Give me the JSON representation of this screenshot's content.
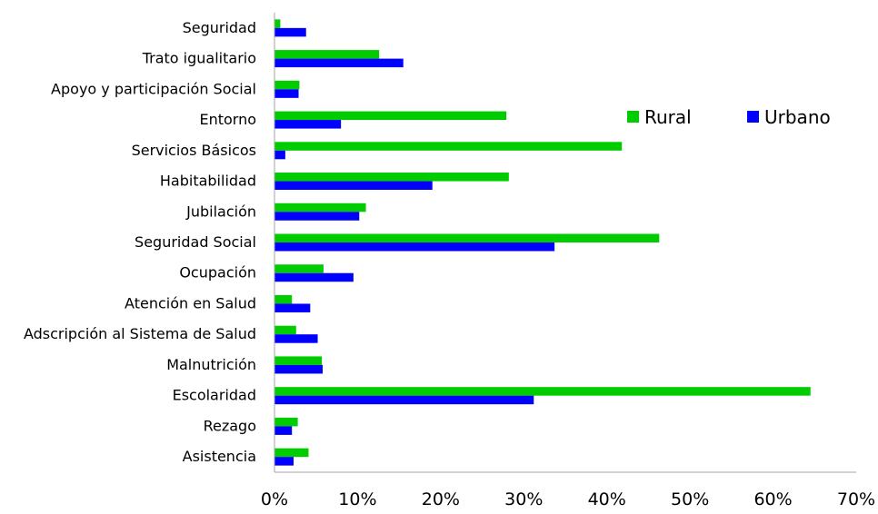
{
  "chart_data": {
    "type": "bar",
    "orientation": "horizontal",
    "categories": [
      "Seguridad",
      "Trato igualitario",
      "Apoyo y participación Social",
      "Entorno",
      "Servicios Básicos",
      "Habitabilidad",
      "Jubilación",
      "Seguridad Social",
      "Ocupación",
      "Atención en Salud",
      "Adscripción al Sistema de Salud",
      "Malnutrición",
      "Escolaridad",
      "Rezago",
      "Asistencia"
    ],
    "series": [
      {
        "name": "Rural",
        "color": "#00cc00",
        "values": [
          0.7,
          12.6,
          3.0,
          27.9,
          41.8,
          28.2,
          11.0,
          46.3,
          5.9,
          2.1,
          2.6,
          5.7,
          64.5,
          2.8,
          4.1
        ]
      },
      {
        "name": "Urbano",
        "color": "#0000ff",
        "values": [
          3.8,
          15.5,
          2.9,
          8.0,
          1.3,
          19.0,
          10.2,
          33.7,
          9.5,
          4.3,
          5.2,
          5.8,
          31.2,
          2.1,
          2.3
        ]
      }
    ],
    "x_ticks": [
      "0%",
      "10%",
      "20%",
      "30%",
      "40%",
      "50%",
      "60%",
      "70%"
    ],
    "xlim": [
      0,
      70
    ],
    "xlabel": "",
    "ylabel": "",
    "title": "",
    "grid": false,
    "legend_position": "right",
    "legend": [
      "Rural",
      "Urbano"
    ]
  }
}
